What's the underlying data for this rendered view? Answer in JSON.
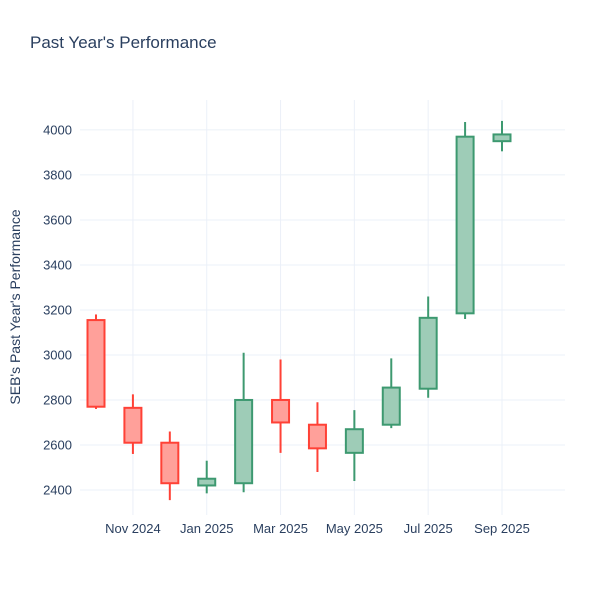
{
  "title": "Past Year's Performance",
  "colors": {
    "background": "#ffffff",
    "text": "#2a3f5f",
    "grid": "#ebf0f8",
    "increasing_line": "#3D9970",
    "increasing_fill": "#9ECCB7",
    "decreasing_line": "#FF4136",
    "decreasing_fill": "#FFA09A"
  },
  "chart_data": {
    "type": "candlestick",
    "title": "Past Year's Performance",
    "xlabel": "",
    "ylabel": "SEB's Past Year's Performance",
    "x_tick_labels": [
      "Nov 2024",
      "Jan 2025",
      "Mar 2025",
      "May 2025",
      "Jul 2025",
      "Sep 2025"
    ],
    "y_ticks": [
      2400,
      2600,
      2800,
      3000,
      3200,
      3400,
      3600,
      3800,
      4000
    ],
    "ylim": [
      2311,
      4133
    ],
    "grid": true,
    "legend_position": "none",
    "categories": [
      "Oct 2024",
      "Nov 2024",
      "Dec 2024",
      "Jan 2025",
      "Feb 2025",
      "Mar 2025",
      "Apr 2025",
      "May 2025",
      "Jun 2025",
      "Jul 2025",
      "Aug 2025",
      "Sep 2025"
    ],
    "ohlc": [
      {
        "x": "Oct 2024",
        "open": 3155,
        "high": 3180,
        "low": 2760,
        "close": 2770
      },
      {
        "x": "Nov 2024",
        "open": 2765,
        "high": 2825,
        "low": 2560,
        "close": 2610
      },
      {
        "x": "Dec 2024",
        "open": 2610,
        "high": 2660,
        "low": 2355,
        "close": 2430
      },
      {
        "x": "Jan 2025",
        "open": 2420,
        "high": 2530,
        "low": 2385,
        "close": 2450
      },
      {
        "x": "Feb 2025",
        "open": 2430,
        "high": 3010,
        "low": 2390,
        "close": 2800
      },
      {
        "x": "Mar 2025",
        "open": 2800,
        "high": 2980,
        "low": 2565,
        "close": 2700
      },
      {
        "x": "Apr 2025",
        "open": 2690,
        "high": 2790,
        "low": 2480,
        "close": 2585
      },
      {
        "x": "May 2025",
        "open": 2565,
        "high": 2755,
        "low": 2440,
        "close": 2670
      },
      {
        "x": "Jun 2025",
        "open": 2690,
        "high": 2985,
        "low": 2675,
        "close": 2855
      },
      {
        "x": "Jul 2025",
        "open": 2850,
        "high": 3260,
        "low": 2810,
        "close": 3165
      },
      {
        "x": "Aug 2025",
        "open": 3185,
        "high": 4035,
        "low": 3160,
        "close": 3970
      },
      {
        "x": "Sep 2025",
        "open": 3950,
        "high": 4040,
        "low": 3905,
        "close": 3980
      }
    ]
  }
}
